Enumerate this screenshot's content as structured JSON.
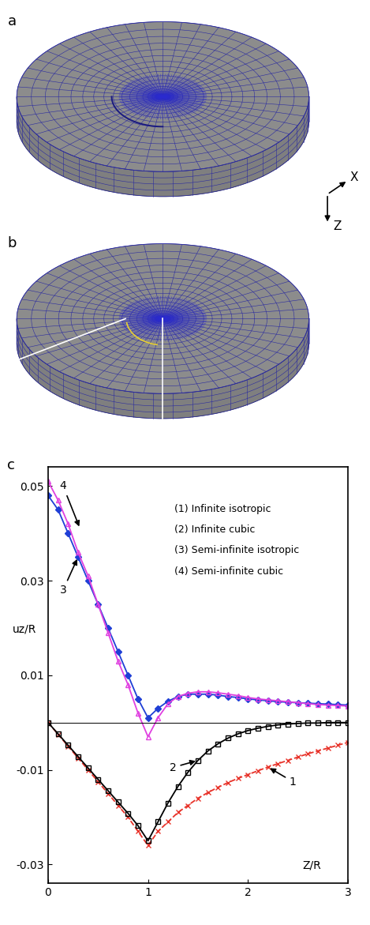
{
  "panels": [
    "a",
    "b",
    "c"
  ],
  "axis_arrows": [
    "X",
    "Z"
  ],
  "chart_data": {
    "type": "line",
    "x_label": "Z/R",
    "y_label": "uz/R",
    "x": [
      0,
      0.1,
      0.2,
      0.3,
      0.4,
      0.5,
      0.6,
      0.7,
      0.8,
      0.9,
      1.0,
      1.1,
      1.2,
      1.3,
      1.4,
      1.5,
      1.6,
      1.7,
      1.8,
      1.9,
      2.0,
      2.1,
      2.2,
      2.3,
      2.4,
      2.5,
      2.6,
      2.7,
      2.8,
      2.9,
      3.0
    ],
    "xlim": [
      0,
      3
    ],
    "xticks": [
      0,
      1,
      2,
      3
    ],
    "ylim": [
      -0.034,
      0.054
    ],
    "yticks": [
      -0.03,
      -0.01,
      0.01,
      0.03,
      0.05
    ],
    "reference_line": 0,
    "series": [
      {
        "name": "(1) Infinite isotropic",
        "color": "#e8332a",
        "marker": "x",
        "line_style": "dashed",
        "values": [
          0,
          -0.0025,
          -0.005,
          -0.0075,
          -0.01,
          -0.0125,
          -0.015,
          -0.0175,
          -0.02,
          -0.023,
          -0.026,
          -0.023,
          -0.021,
          -0.019,
          -0.0175,
          -0.016,
          -0.0148,
          -0.0137,
          -0.0127,
          -0.0118,
          -0.011,
          -0.0102,
          -0.0094,
          -0.0087,
          -0.008,
          -0.0073,
          -0.0066,
          -0.006,
          -0.0054,
          -0.0048,
          -0.0042
        ]
      },
      {
        "name": "(2) Infinite cubic",
        "color": "#000000",
        "marker": "square",
        "line_style": "solid",
        "values": [
          0,
          -0.0024,
          -0.0048,
          -0.0072,
          -0.0096,
          -0.012,
          -0.0144,
          -0.0168,
          -0.0192,
          -0.0218,
          -0.025,
          -0.021,
          -0.017,
          -0.0135,
          -0.0105,
          -0.008,
          -0.006,
          -0.0045,
          -0.0033,
          -0.0024,
          -0.0017,
          -0.0012,
          -0.0008,
          -0.0005,
          -0.0003,
          -0.0002,
          -0.0001,
          -0.0001,
          0,
          0,
          0
        ]
      },
      {
        "name": "(3) Semi-infinite isotropic",
        "color": "#1f3fd6",
        "marker": "diamond",
        "line_style": "solid",
        "values": [
          0.048,
          0.045,
          0.04,
          0.035,
          0.03,
          0.025,
          0.02,
          0.015,
          0.01,
          0.005,
          0.001,
          0.003,
          0.0045,
          0.0055,
          0.006,
          0.006,
          0.006,
          0.0058,
          0.0055,
          0.0053,
          0.005,
          0.0048,
          0.0046,
          0.0044,
          0.0043,
          0.0042,
          0.0041,
          0.004,
          0.0039,
          0.0038,
          0.0037
        ]
      },
      {
        "name": "(4) Semi-infinite cubic",
        "color": "#e040e0",
        "marker": "triangle",
        "line_style": "solid",
        "values": [
          0.051,
          0.047,
          0.042,
          0.036,
          0.031,
          0.025,
          0.019,
          0.013,
          0.008,
          0.002,
          -0.003,
          0.001,
          0.004,
          0.0055,
          0.0062,
          0.0065,
          0.0065,
          0.0063,
          0.006,
          0.0057,
          0.0053,
          0.005,
          0.0048,
          0.0046,
          0.0044,
          0.0042,
          0.004,
          0.0038,
          0.0037,
          0.0036,
          0.0035
        ]
      }
    ],
    "annotations": [
      {
        "text": "4",
        "xy": [
          0.32,
          0.041
        ],
        "xytext": [
          0.15,
          0.05
        ]
      },
      {
        "text": "3",
        "xy": [
          0.3,
          0.035
        ],
        "xytext": [
          0.15,
          0.028
        ]
      },
      {
        "text": "2",
        "xy": [
          1.5,
          -0.008
        ],
        "xytext": [
          1.25,
          -0.0095
        ]
      },
      {
        "text": "1",
        "xy": [
          2.2,
          -0.0094
        ],
        "xytext": [
          2.45,
          -0.0125
        ]
      }
    ]
  }
}
